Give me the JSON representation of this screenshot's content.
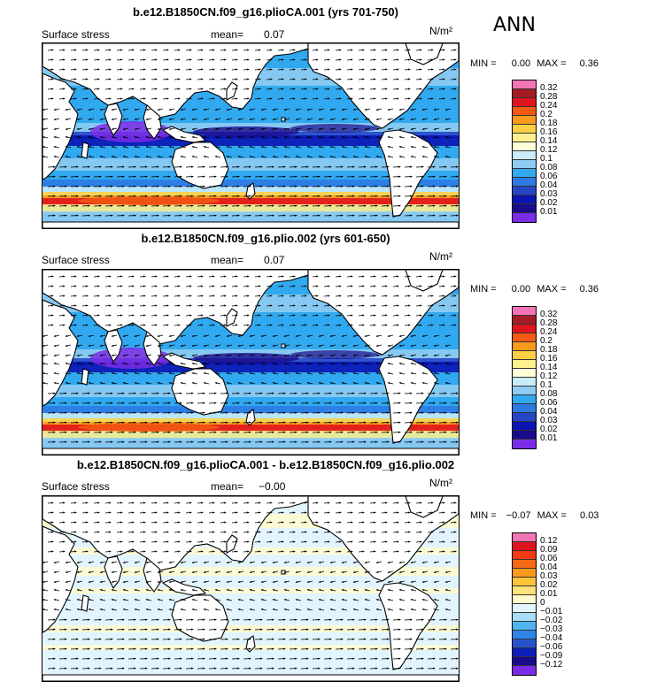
{
  "season": "ANN",
  "variable": "Surface stress",
  "units": "N/m²",
  "colors": {
    "land": "#ffffff",
    "coast": "#000000",
    "arrow": "#000000"
  },
  "panels": [
    {
      "title": "b.e12.B1850CN.f09_g16.plioCA.001 (yrs 701-750)",
      "mean_label": "mean=",
      "mean_value": "0.07",
      "min_label": "MIN =",
      "min_value": "0.00",
      "max_label": "MAX =",
      "max_value": "0.36",
      "levels": [
        "0.32",
        "0.28",
        "0.24",
        "0.2",
        "0.18",
        "0.16",
        "0.14",
        "0.12",
        "0.1",
        "0.08",
        "0.06",
        "0.04",
        "0.03",
        "0.02",
        "0.01"
      ],
      "colors": [
        "#f475b5",
        "#a51c24",
        "#e0141e",
        "#f25a12",
        "#f99a1c",
        "#fbd043",
        "#fdf08f",
        "#ffffd8",
        "#c9ecfa",
        "#8fcbf2",
        "#31a9ef",
        "#2d7ae2",
        "#2546c6",
        "#0a14b3",
        "#1a0a8c",
        "#7b2ce6"
      ],
      "type": "abs"
    },
    {
      "title": "b.e12.B1850CN.f09_g16.plio.002 (yrs 601-650)",
      "mean_label": "mean=",
      "mean_value": "0.07",
      "min_label": "MIN =",
      "min_value": "0.00",
      "max_label": "MAX =",
      "max_value": "0.36",
      "levels": [
        "0.32",
        "0.28",
        "0.24",
        "0.2",
        "0.18",
        "0.16",
        "0.14",
        "0.12",
        "0.1",
        "0.08",
        "0.06",
        "0.04",
        "0.03",
        "0.02",
        "0.01"
      ],
      "colors": [
        "#f475b5",
        "#a51c24",
        "#e0141e",
        "#f25a12",
        "#f99a1c",
        "#fbd043",
        "#fdf08f",
        "#ffffd8",
        "#c9ecfa",
        "#8fcbf2",
        "#31a9ef",
        "#2d7ae2",
        "#2546c6",
        "#0a14b3",
        "#1a0a8c",
        "#7b2ce6"
      ],
      "type": "abs"
    },
    {
      "title": "b.e12.B1850CN.f09_g16.plioCA.001 - b.e12.B1850CN.f09_g16.plio.002",
      "mean_label": "mean=",
      "mean_value": "−0.00",
      "min_label": "MIN =",
      "min_value": "−0.07",
      "max_label": "MAX =",
      "max_value": "0.03",
      "levels": [
        "0.12",
        "0.09",
        "0.06",
        "0.04",
        "0.03",
        "0.02",
        "0.01",
        "0",
        "−0.01",
        "−0.02",
        "−0.03",
        "−0.04",
        "−0.06",
        "−0.09",
        "−0.12"
      ],
      "colors": [
        "#f475b5",
        "#e0141e",
        "#f23a14",
        "#f56a14",
        "#f99a1c",
        "#fbc23a",
        "#fde27a",
        "#fffacd",
        "#e2f5ff",
        "#a9dcf7",
        "#4fb5f0",
        "#2d86e6",
        "#2852cc",
        "#0b1fb8",
        "#1a0a8c",
        "#7b2ce6"
      ],
      "type": "diff"
    }
  ]
}
